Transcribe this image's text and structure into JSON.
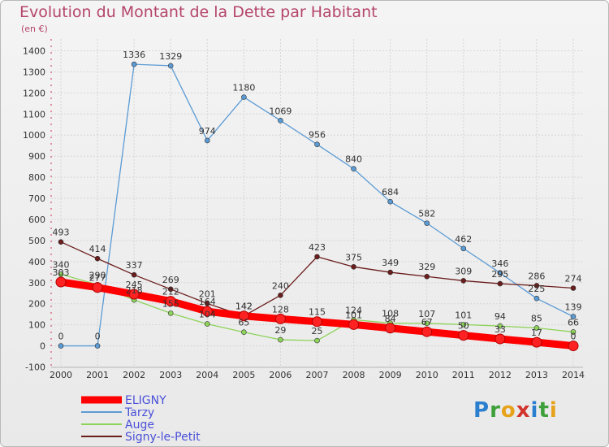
{
  "title": "Evolution du Montant de la Dette par Habitant",
  "unit": "(en €)",
  "logo": [
    "P",
    "r",
    "o",
    "x",
    "i",
    "t",
    "i"
  ],
  "chart_data": {
    "type": "line",
    "title": "Evolution du Montant de la Dette par Habitant",
    "ylabel": "(en €)",
    "xlabel": "",
    "ylim": [
      -100,
      1400
    ],
    "ytick_step": 100,
    "grid": true,
    "legend_position": "bottom-left",
    "x": [
      "2000",
      "2001",
      "2002",
      "2003",
      "2004",
      "2005",
      "2006",
      "2007",
      "2008",
      "2009",
      "2010",
      "2011",
      "2012",
      "2013",
      "2014"
    ],
    "series": [
      {
        "name": "ELIGNY",
        "color": "#ff0000",
        "values": [
          303,
          277,
          245,
          212,
          164,
          142,
          128,
          115,
          101,
          84,
          67,
          50,
          33,
          17,
          0
        ]
      },
      {
        "name": "Tarzy",
        "color": "#5b9bd5",
        "values": [
          0,
          0,
          1336,
          1329,
          974,
          1180,
          1069,
          956,
          840,
          684,
          582,
          462,
          346,
          225,
          139
        ]
      },
      {
        "name": "Auge",
        "color": "#8ed35a",
        "values": [
          340,
          290,
          218,
          155,
          104,
          65,
          29,
          25,
          124,
          108,
          107,
          101,
          94,
          85,
          66
        ]
      },
      {
        "name": "Signy-le-Petit",
        "color": "#6b1c1c",
        "values": [
          493,
          414,
          337,
          269,
          201,
          142,
          240,
          423,
          375,
          349,
          329,
          309,
          295,
          286,
          274
        ]
      }
    ]
  }
}
